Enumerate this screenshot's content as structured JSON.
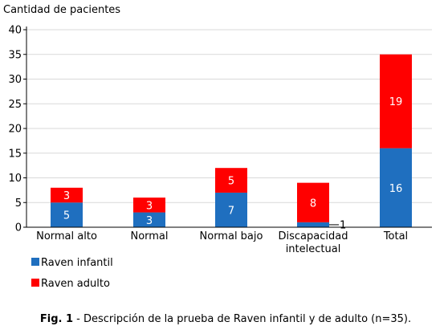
{
  "chart_data": {
    "type": "bar",
    "stacked": true,
    "ylabel": "Cantidad de pacientes",
    "xlabel": "",
    "ylim": [
      0,
      40
    ],
    "yticks": [
      0,
      5,
      10,
      15,
      20,
      25,
      30,
      35,
      40
    ],
    "grid": true,
    "legend_position": "bottom-left",
    "categories": [
      [
        "Normal alto"
      ],
      [
        "Normal"
      ],
      [
        "Normal bajo"
      ],
      [
        "Discapacidad",
        "intelectual"
      ],
      [
        "Total"
      ]
    ],
    "series": [
      {
        "name": "Raven infantil",
        "color": "#1f6fbf",
        "values": [
          5,
          3,
          7,
          1,
          16
        ]
      },
      {
        "name": "Raven adulto",
        "color": "#ff0000",
        "values": [
          3,
          3,
          5,
          8,
          19
        ]
      }
    ]
  },
  "caption": {
    "label": "Fig. 1",
    "text": " - Descripción de la prueba de Raven infantil y de adulto (n=35)."
  }
}
